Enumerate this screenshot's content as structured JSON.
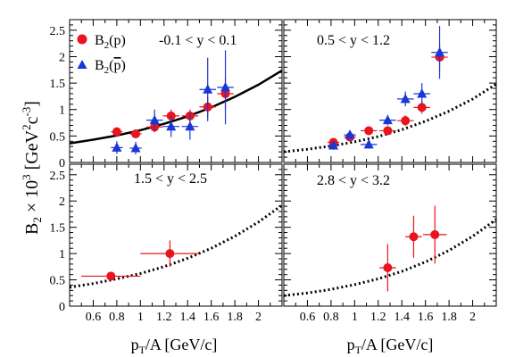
{
  "figure": {
    "ylabel": "B₂ × 10³ [GeV²c⁻³]",
    "xlabel": "p_T/A [GeV/c]",
    "ylabel_main": "B",
    "ylabel_sub": "2",
    "ylabel_mid": " × 10",
    "ylabel_sup1": "3",
    "ylabel_unit_open": " [GeV",
    "ylabel_sup2": "2",
    "ylabel_unit_mid": "c",
    "ylabel_sup3": "-3",
    "ylabel_unit_close": "]",
    "xlabel_p": "p",
    "xlabel_sub": "T",
    "xlabel_rest": "/A [GeV/c]",
    "legend": {
      "proton": {
        "main": "B",
        "sub": "2",
        "arg": "(p)"
      },
      "antiproton": {
        "main": "B",
        "sub": "2",
        "arg_open": "(",
        "arg_p": "p",
        "arg_close": ")"
      }
    },
    "colors": {
      "proton": "#e8141e",
      "antiproton": "#1a36d6",
      "curve": "#000000",
      "axis": "#000000"
    },
    "markers": {
      "proton": "circle",
      "antiproton": "triangle"
    }
  },
  "chart_data": [
    {
      "type": "scatter",
      "panel": "top-left",
      "title": "-0.1 < y < 0.1",
      "xlim": [
        0.4,
        2.2
      ],
      "ylim": [
        0,
        2.7
      ],
      "x_ticks": [
        0.6,
        0.8,
        1,
        1.2,
        1.4,
        1.6,
        1.8,
        2
      ],
      "y_ticks": [
        0,
        0.5,
        1,
        1.5,
        2,
        2.5
      ],
      "y_tick_labels": [
        "0",
        "0.5",
        "1",
        "1.5",
        "2",
        "2.5"
      ],
      "legend_placement": "top-left",
      "curve": {
        "style": "solid",
        "x": [
          0.4,
          0.6,
          0.8,
          1.0,
          1.2,
          1.4,
          1.6,
          1.8,
          2.0,
          2.2
        ],
        "y": [
          0.36,
          0.43,
          0.51,
          0.61,
          0.73,
          0.87,
          1.04,
          1.24,
          1.47,
          1.74
        ]
      },
      "series": [
        {
          "name": "B2(p)",
          "marker": "circle",
          "points": [
            {
              "x": 0.8,
              "y": 0.58,
              "xerr": 0.05,
              "yerr": 0.08
            },
            {
              "x": 0.96,
              "y": 0.54,
              "xerr": 0.05,
              "yerr": 0.08
            },
            {
              "x": 1.12,
              "y": 0.67,
              "xerr": 0.07,
              "yerr": 0.1
            },
            {
              "x": 1.26,
              "y": 0.88,
              "xerr": 0.07,
              "yerr": 0.12
            },
            {
              "x": 1.42,
              "y": 0.88,
              "xerr": 0.07,
              "yerr": 0.12
            },
            {
              "x": 1.57,
              "y": 1.05,
              "xerr": 0.07,
              "yerr": 0.2
            },
            {
              "x": 1.72,
              "y": 1.3,
              "xerr": 0.07,
              "yerr": 0.3
            }
          ]
        },
        {
          "name": "B2(pbar)",
          "marker": "triangle",
          "points": [
            {
              "x": 0.8,
              "y": 0.28,
              "xerr": 0.05,
              "yerr": 0.12
            },
            {
              "x": 0.96,
              "y": 0.27,
              "xerr": 0.05,
              "yerr": 0.12
            },
            {
              "x": 1.12,
              "y": 0.8,
              "xerr": 0.07,
              "yerr": 0.2
            },
            {
              "x": 1.26,
              "y": 0.68,
              "xerr": 0.07,
              "yerr": 0.2
            },
            {
              "x": 1.42,
              "y": 0.68,
              "xerr": 0.07,
              "yerr": 0.25
            },
            {
              "x": 1.57,
              "y": 1.38,
              "xerr": 0.07,
              "yerr": 0.6
            },
            {
              "x": 1.72,
              "y": 1.42,
              "xerr": 0.07,
              "yerr": 0.7
            }
          ]
        }
      ]
    },
    {
      "type": "scatter",
      "panel": "top-right",
      "title": "0.5 < y < 1.2",
      "xlim": [
        0.4,
        2.2
      ],
      "ylim": [
        0,
        2.7
      ],
      "x_ticks": [
        0.6,
        0.8,
        1,
        1.2,
        1.4,
        1.6,
        1.8,
        2
      ],
      "y_ticks": [
        0,
        0.5,
        1,
        1.5,
        2,
        2.5
      ],
      "curve": {
        "style": "dotted",
        "x": [
          0.4,
          0.6,
          0.8,
          1.0,
          1.2,
          1.4,
          1.6,
          1.8,
          2.0,
          2.2
        ],
        "y": [
          0.2,
          0.25,
          0.31,
          0.39,
          0.49,
          0.62,
          0.78,
          0.97,
          1.2,
          1.48
        ]
      },
      "series": [
        {
          "name": "B2(p)",
          "marker": "circle",
          "points": [
            {
              "x": 0.82,
              "y": 0.38,
              "xerr": 0.05,
              "yerr": 0.06
            },
            {
              "x": 0.96,
              "y": 0.48,
              "xerr": 0.05,
              "yerr": 0.07
            },
            {
              "x": 1.12,
              "y": 0.6,
              "xerr": 0.07,
              "yerr": 0.08
            },
            {
              "x": 1.28,
              "y": 0.6,
              "xerr": 0.07,
              "yerr": 0.08
            },
            {
              "x": 1.43,
              "y": 0.79,
              "xerr": 0.07,
              "yerr": 0.1
            },
            {
              "x": 1.57,
              "y": 1.04,
              "xerr": 0.07,
              "yerr": 0.12
            },
            {
              "x": 1.72,
              "y": 1.99,
              "xerr": 0.07,
              "yerr": 0.25
            }
          ]
        },
        {
          "name": "B2(pbar)",
          "marker": "triangle",
          "points": [
            {
              "x": 0.82,
              "y": 0.32,
              "xerr": 0.05,
              "yerr": 0.08
            },
            {
              "x": 0.96,
              "y": 0.52,
              "xerr": 0.05,
              "yerr": 0.08
            },
            {
              "x": 1.12,
              "y": 0.34,
              "xerr": 0.07,
              "yerr": 0.08
            },
            {
              "x": 1.28,
              "y": 0.8,
              "xerr": 0.07,
              "yerr": 0.1
            },
            {
              "x": 1.43,
              "y": 1.2,
              "xerr": 0.07,
              "yerr": 0.14
            },
            {
              "x": 1.57,
              "y": 1.3,
              "xerr": 0.07,
              "yerr": 0.2
            },
            {
              "x": 1.72,
              "y": 2.08,
              "xerr": 0.07,
              "yerr": 0.5
            }
          ]
        }
      ]
    },
    {
      "type": "scatter",
      "panel": "bottom-left",
      "title": "1.5 < y < 2.5",
      "xlim": [
        0.4,
        2.2
      ],
      "ylim": [
        0,
        2.7
      ],
      "x_ticks": [
        0.6,
        0.8,
        1,
        1.2,
        1.4,
        1.6,
        1.8,
        2
      ],
      "y_ticks": [
        0,
        0.5,
        1,
        1.5,
        2,
        2.5
      ],
      "x_tick_labels": [
        "0.6",
        "0.8",
        "1",
        "1.2",
        "1.4",
        "1.6",
        "1.8",
        "2"
      ],
      "curve": {
        "style": "dotted",
        "x": [
          0.4,
          0.6,
          0.8,
          1.0,
          1.2,
          1.4,
          1.6,
          1.8,
          2.0,
          2.2
        ],
        "y": [
          0.36,
          0.43,
          0.52,
          0.62,
          0.75,
          0.91,
          1.1,
          1.33,
          1.6,
          1.92
        ]
      },
      "series": [
        {
          "name": "B2(p)",
          "marker": "circle",
          "points": [
            {
              "x": 0.75,
              "y": 0.57,
              "xerr": 0.25,
              "yerr": 0.05
            },
            {
              "x": 1.25,
              "y": 1.0,
              "xerr": 0.25,
              "yerr": 0.25
            }
          ]
        }
      ]
    },
    {
      "type": "scatter",
      "panel": "bottom-right",
      "title": "2.8 < y < 3.2",
      "xlim": [
        0.4,
        2.2
      ],
      "ylim": [
        0,
        2.7
      ],
      "x_ticks": [
        0.6,
        0.8,
        1,
        1.2,
        1.4,
        1.6,
        1.8,
        2
      ],
      "y_ticks": [
        0,
        0.5,
        1,
        1.5,
        2,
        2.5
      ],
      "x_tick_labels": [
        "0.6",
        "0.8",
        "1",
        "1.2",
        "1.4",
        "1.6",
        "1.8",
        "2"
      ],
      "curve": {
        "style": "dotted",
        "x": [
          0.4,
          0.6,
          0.8,
          1.0,
          1.2,
          1.4,
          1.6,
          1.8,
          2.0,
          2.2
        ],
        "y": [
          0.2,
          0.25,
          0.32,
          0.41,
          0.52,
          0.66,
          0.84,
          1.06,
          1.33,
          1.65
        ]
      },
      "series": [
        {
          "name": "B2(p)",
          "marker": "circle",
          "points": [
            {
              "x": 1.28,
              "y": 0.73,
              "xerr": 0.07,
              "yerr": 0.45
            },
            {
              "x": 1.5,
              "y": 1.32,
              "xerr": 0.07,
              "yerr": 0.4
            },
            {
              "x": 1.68,
              "y": 1.36,
              "xerr": 0.1,
              "yerr": 0.55
            }
          ]
        }
      ]
    }
  ]
}
